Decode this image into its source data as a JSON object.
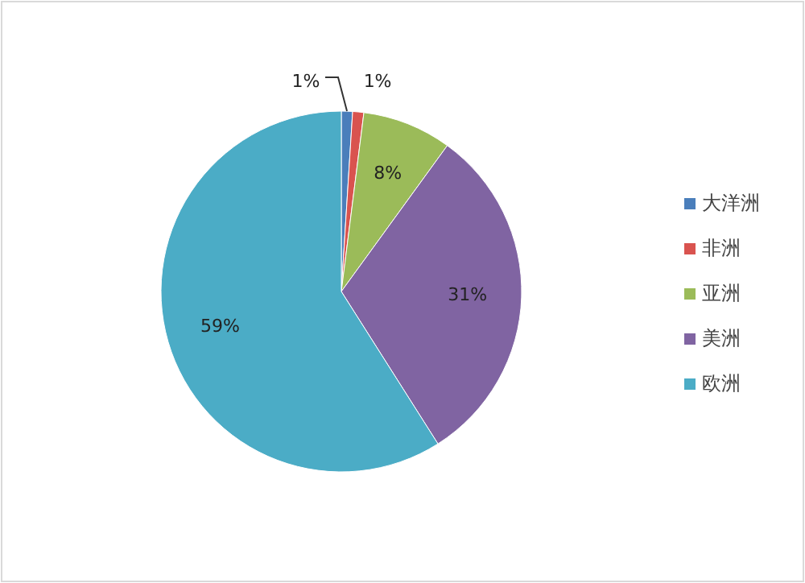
{
  "chart_data": {
    "type": "pie",
    "categories": [
      "大洋洲",
      "非洲",
      "亚洲",
      "美洲",
      "欧洲"
    ],
    "values": [
      1,
      1,
      8,
      31,
      59
    ],
    "colors": [
      "#4a7ebb",
      "#d9534f",
      "#9bbb59",
      "#8064a2",
      "#4bacc6"
    ],
    "value_labels": [
      "1%",
      "1%",
      "8%",
      "31%",
      "59%"
    ],
    "legend": "right"
  }
}
